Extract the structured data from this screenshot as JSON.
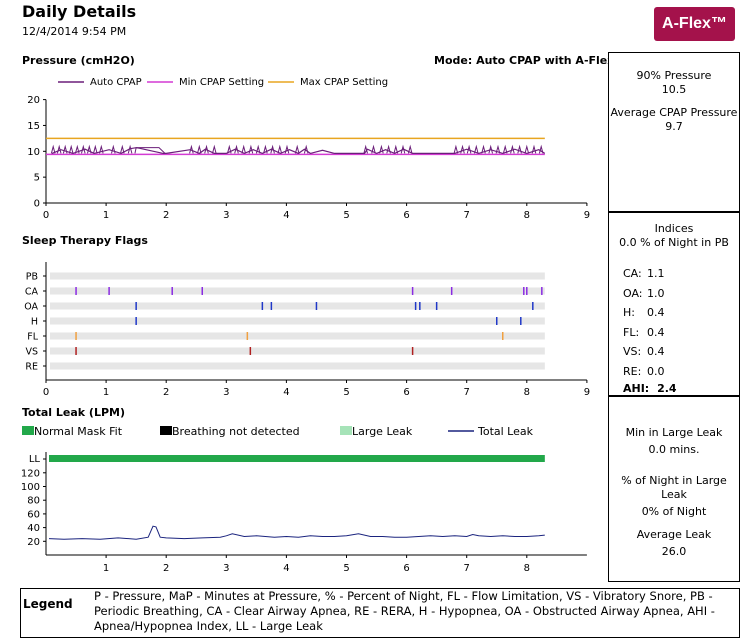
{
  "header": {
    "title": "Daily Details",
    "datetime": "12/4/2014 9:54 PM",
    "logo": "A-Flex™"
  },
  "pressure": {
    "section_title": "Pressure (cmH2O)",
    "mode": "Mode: Auto CPAP with A-Flex",
    "legend": [
      "Auto CPAP",
      "Min CPAP Setting",
      "Max CPAP Setting"
    ],
    "colors": {
      "auto": "#6b1f7a",
      "min": "#d33ad3",
      "max": "#e8a520"
    }
  },
  "flags": {
    "section_title": "Sleep Therapy Flags"
  },
  "leak": {
    "section_title": "Total Leak (LPM)",
    "legend": [
      "Normal Mask Fit",
      "Breathing not detected",
      "Large Leak",
      "Total Leak"
    ],
    "colors": {
      "normal": "#22a84a",
      "not_detected": "#000000",
      "large": "#a6e3b8",
      "total": "#1a237e"
    }
  },
  "panels": {
    "pressure": {
      "p90_label": "90% Pressure",
      "p90_value": "10.5",
      "avg_label": "Average CPAP Pressure",
      "avg_value": "9.7"
    },
    "indices": {
      "title": "Indices",
      "pb": "0.0 % of Night in PB",
      "rows": [
        {
          "label": "CA:",
          "value": "1.1"
        },
        {
          "label": "OA:",
          "value": "1.0"
        },
        {
          "label": "H:",
          "value": "0.4"
        },
        {
          "label": "FL:",
          "value": "0.4"
        },
        {
          "label": "VS:",
          "value": "0.4"
        },
        {
          "label": "RE:",
          "value": "0.0"
        }
      ],
      "ahi_label": "AHI:",
      "ahi_value": "2.4"
    },
    "leak": {
      "large_label": "Min in Large Leak",
      "large_value": "0.0 mins.",
      "pct_label": "% of Night in Large Leak",
      "pct_value": "0% of Night",
      "avg_label": "Average Leak",
      "avg_value": "26.0"
    }
  },
  "legend": {
    "title": "Legend",
    "text": "P - Pressure, MaP - Minutes at Pressure, % - Percent of Night, FL - Flow Limitation, VS - Vibratory Snore, PB - Periodic Breathing, CA - Clear Airway Apnea, RE - RERA, H - Hypopnea, OA - Obstructed Airway Apnea, AHI - Apnea/Hypopnea Index, LL - Large Leak"
  },
  "chart_data": [
    {
      "type": "line",
      "title": "Pressure (cmH2O)",
      "x_unit": "hours",
      "xlim": [
        0,
        9
      ],
      "ylim": [
        0,
        20
      ],
      "x_ticks": [
        0,
        1,
        2,
        3,
        4,
        5,
        6,
        7,
        8,
        9
      ],
      "y_ticks": [
        0,
        5,
        10,
        15,
        20
      ],
      "grid": false,
      "legend_position": "top",
      "series": [
        {
          "name": "Auto CPAP",
          "x": [
            0.1,
            0.25,
            0.45,
            0.65,
            0.8,
            1.05,
            1.25,
            1.4,
            1.5,
            1.55,
            1.95,
            2.0,
            2.4,
            2.55,
            2.65,
            2.8,
            3.0,
            3.15,
            3.3,
            3.45,
            3.6,
            3.75,
            3.9,
            4.05,
            4.2,
            4.3,
            4.4,
            4.6,
            4.8,
            5.0,
            5.3,
            5.35,
            5.5,
            5.65,
            5.8,
            5.95,
            6.1,
            6.2,
            6.8,
            7.0,
            7.2,
            7.4,
            7.6,
            7.8,
            8.0,
            8.2,
            8.3
          ],
          "y": [
            9.6,
            10.3,
            9.6,
            10.4,
            9.6,
            10.3,
            9.6,
            10.5,
            10.7,
            10.6,
            9.6,
            9.6,
            10.3,
            9.6,
            10.4,
            9.6,
            9.6,
            10.4,
            9.6,
            10.3,
            9.6,
            10.4,
            9.6,
            10.3,
            9.6,
            10.4,
            9.6,
            10.2,
            9.6,
            9.6,
            9.6,
            10.4,
            9.6,
            10.3,
            9.6,
            10.4,
            9.6,
            9.6,
            9.6,
            10.4,
            9.6,
            10.3,
            9.6,
            10.4,
            9.6,
            10.3,
            9.6
          ]
        },
        {
          "name": "Min CPAP Setting",
          "x": [
            0,
            8.3
          ],
          "y": [
            9.4,
            9.4
          ]
        },
        {
          "name": "Max CPAP Setting",
          "x": [
            0,
            8.3
          ],
          "y": [
            12.5,
            12.5
          ]
        }
      ]
    },
    {
      "type": "scatter",
      "title": "Sleep Therapy Flags",
      "x_unit": "hours",
      "xlim": [
        0,
        9
      ],
      "x_ticks": [
        0,
        1,
        2,
        3,
        4,
        5,
        6,
        7,
        8,
        9
      ],
      "categories": [
        "PB",
        "CA",
        "OA",
        "H",
        "FL",
        "VS",
        "RE"
      ],
      "series": [
        {
          "name": "CA",
          "x": [
            0.5,
            1.05,
            2.1,
            2.6,
            6.1,
            6.75,
            7.95,
            8.0,
            8.25
          ]
        },
        {
          "name": "OA",
          "x": [
            1.5,
            3.6,
            3.75,
            4.5,
            6.15,
            6.22,
            6.5,
            8.1
          ]
        },
        {
          "name": "H",
          "x": [
            1.5,
            7.5,
            7.9
          ]
        },
        {
          "name": "FL",
          "x": [
            0.5,
            3.35,
            7.6
          ]
        },
        {
          "name": "VS",
          "x": [
            0.5,
            3.4,
            6.1
          ]
        },
        {
          "name": "PB",
          "x": []
        },
        {
          "name": "RE",
          "x": []
        }
      ]
    },
    {
      "type": "line",
      "title": "Total Leak (LPM)",
      "x_unit": "hours",
      "xlim": [
        0,
        9
      ],
      "ylim": [
        0,
        140
      ],
      "x_ticks": [
        1,
        2,
        3,
        4,
        5,
        6,
        7,
        8
      ],
      "y_ticks": [
        20,
        40,
        60,
        80,
        100,
        120
      ],
      "extra_y_label": "LL",
      "legend_position": "top",
      "series": [
        {
          "name": "Total Leak",
          "x": [
            0.05,
            0.3,
            0.6,
            0.9,
            1.2,
            1.5,
            1.7,
            1.78,
            1.83,
            1.9,
            2.0,
            2.3,
            2.6,
            2.9,
            3.0,
            3.1,
            3.3,
            3.5,
            3.8,
            4.0,
            4.2,
            4.4,
            4.6,
            4.8,
            5.0,
            5.2,
            5.4,
            5.6,
            5.8,
            6.0,
            6.2,
            6.4,
            6.6,
            6.8,
            7.0,
            7.1,
            7.2,
            7.4,
            7.6,
            7.8,
            8.0,
            8.2,
            8.3
          ],
          "y": [
            24,
            23,
            24,
            23,
            25,
            23,
            26,
            42,
            41,
            26,
            25,
            24,
            25,
            26,
            28,
            31,
            27,
            28,
            26,
            27,
            26,
            28,
            27,
            27,
            28,
            31,
            27,
            27,
            26,
            26,
            27,
            28,
            27,
            28,
            27,
            30,
            28,
            27,
            28,
            27,
            27,
            28,
            29
          ]
        },
        {
          "name": "Normal Mask Fit",
          "x": [
            0.05,
            8.3
          ],
          "y": [
            140,
            140
          ]
        }
      ]
    }
  ]
}
